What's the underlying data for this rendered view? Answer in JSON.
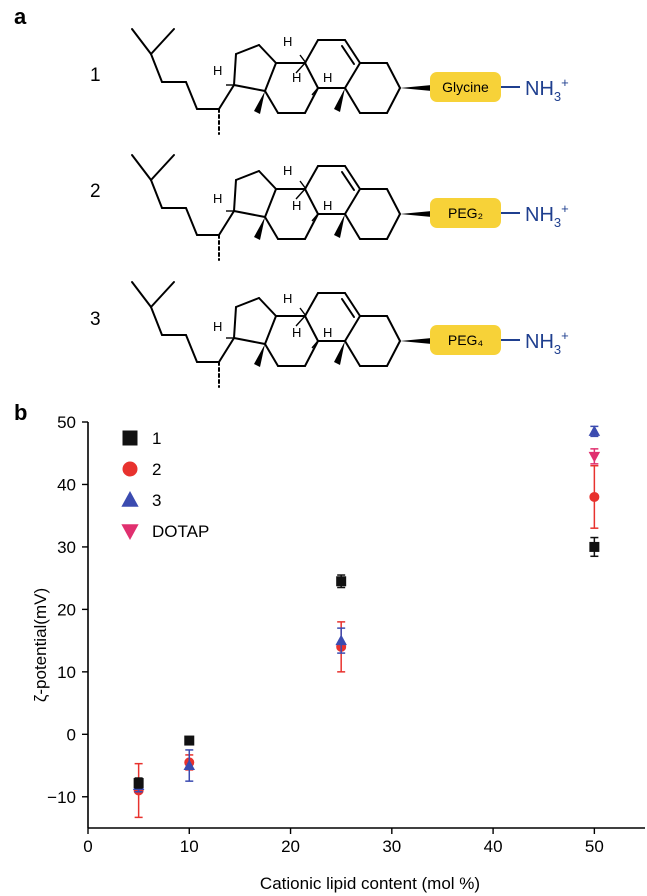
{
  "panels": {
    "a": "a",
    "b": "b"
  },
  "molecules": [
    {
      "num": "1",
      "tag": "Glycine"
    },
    {
      "num": "2",
      "tag": "PEG₂"
    },
    {
      "num": "3",
      "tag": "PEG₄"
    }
  ],
  "amine": {
    "main": "NH",
    "sub": "3",
    "sup": "+"
  },
  "h_label": "H",
  "colors": {
    "tag_fill": "#f7d238",
    "amine": "#1f3f8f"
  },
  "chart_data": {
    "type": "scatter",
    "xlabel": "Cationic lipid content (mol %)",
    "ylabel": "ζ-potential(mV)",
    "xlim": [
      0,
      55
    ],
    "ylim": [
      -15,
      50
    ],
    "xticks": [
      0,
      10,
      20,
      30,
      40,
      50
    ],
    "yticks": [
      -10,
      0,
      10,
      20,
      30,
      40,
      50
    ],
    "ytick_labels": [
      "−10",
      "0",
      "10",
      "20",
      "30",
      "40",
      "50"
    ],
    "legend_position": "top-left",
    "grid": false,
    "series": [
      {
        "name": "1",
        "marker": "square",
        "color": "#111111",
        "error_color": "#111111",
        "points": [
          {
            "x": 5,
            "y": -7.8,
            "err": 0.8
          },
          {
            "x": 10,
            "y": -1.0,
            "err": 0.5
          },
          {
            "x": 25,
            "y": 24.5,
            "err": 1.0
          },
          {
            "x": 50,
            "y": 30.0,
            "err": 1.5
          }
        ]
      },
      {
        "name": "2",
        "marker": "circle",
        "color": "#e8322e",
        "error_color": "#e8322e",
        "points": [
          {
            "x": 5,
            "y": -9.0,
            "err": 4.3
          },
          {
            "x": 10,
            "y": -4.5,
            "err": 1.2
          },
          {
            "x": 25,
            "y": 14.0,
            "err": 4.0
          },
          {
            "x": 50,
            "y": 38.0,
            "err": 5.0
          }
        ]
      },
      {
        "name": "3",
        "marker": "triangle-up",
        "color": "#3b4bb0",
        "error_color": "#3b4bb0",
        "points": [
          {
            "x": 5,
            "y": -8.2,
            "err": 1.0
          },
          {
            "x": 10,
            "y": -5.0,
            "err": 2.5
          },
          {
            "x": 25,
            "y": 15.0,
            "err": 2.0
          },
          {
            "x": 50,
            "y": 48.5,
            "err": 0.8
          }
        ]
      },
      {
        "name": "DOTAP",
        "marker": "triangle-down",
        "color": "#e0306f",
        "error_color": "#e0306f",
        "points": [
          {
            "x": 50,
            "y": 44.5,
            "err": 1.2
          }
        ]
      }
    ]
  }
}
